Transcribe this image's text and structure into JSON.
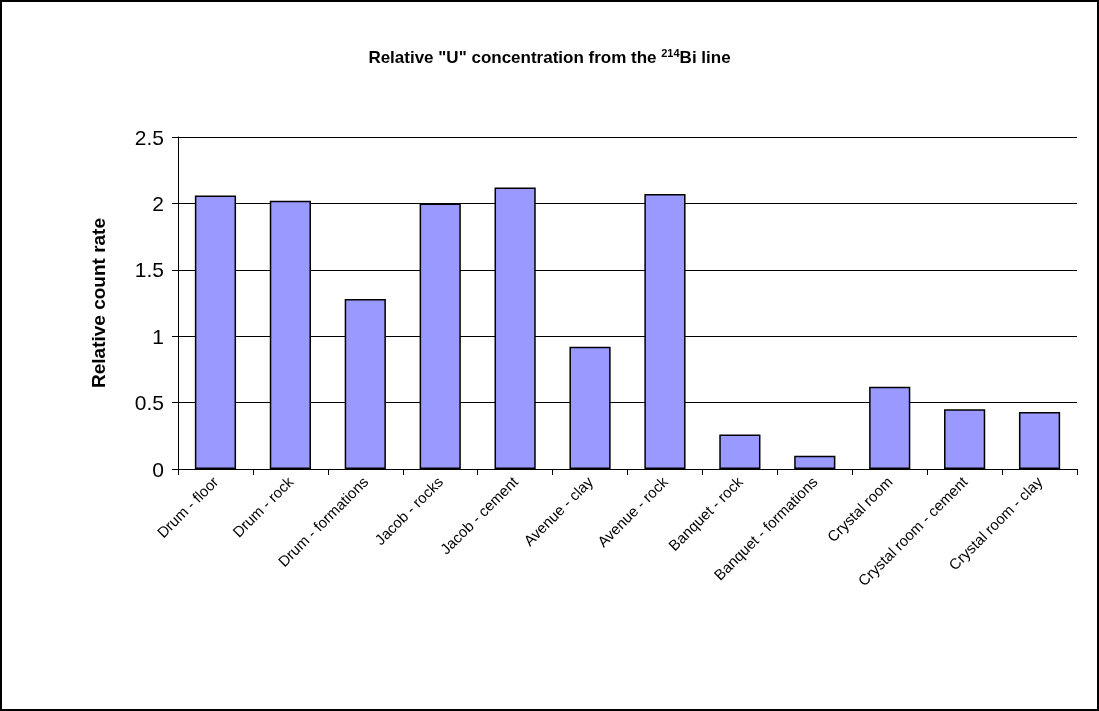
{
  "chart_data": {
    "type": "bar",
    "title": "Relative \"U\" concentration from the $^{214}$Bi line",
    "ylabel": "Relative count rate",
    "categories": [
      "Drum - floor",
      "Drum - rock",
      "Drum - formations",
      "Jacob - rocks",
      "Jacob - cement",
      "Avenue - clay",
      "Avenue - rock",
      "Banquet - rock",
      "Banquet - formations",
      "Crystal room",
      "Crystal room - cement",
      "Crystal room - clay"
    ],
    "values": [
      2.06,
      2.02,
      1.28,
      2.0,
      2.12,
      0.92,
      2.07,
      0.26,
      0.1,
      0.62,
      0.45,
      0.43
    ],
    "color": "#9999ff",
    "ylim": [
      0,
      2.5
    ],
    "yticks": [
      0,
      0.5,
      1,
      1.5,
      2,
      2.5
    ],
    "grid": "y"
  }
}
